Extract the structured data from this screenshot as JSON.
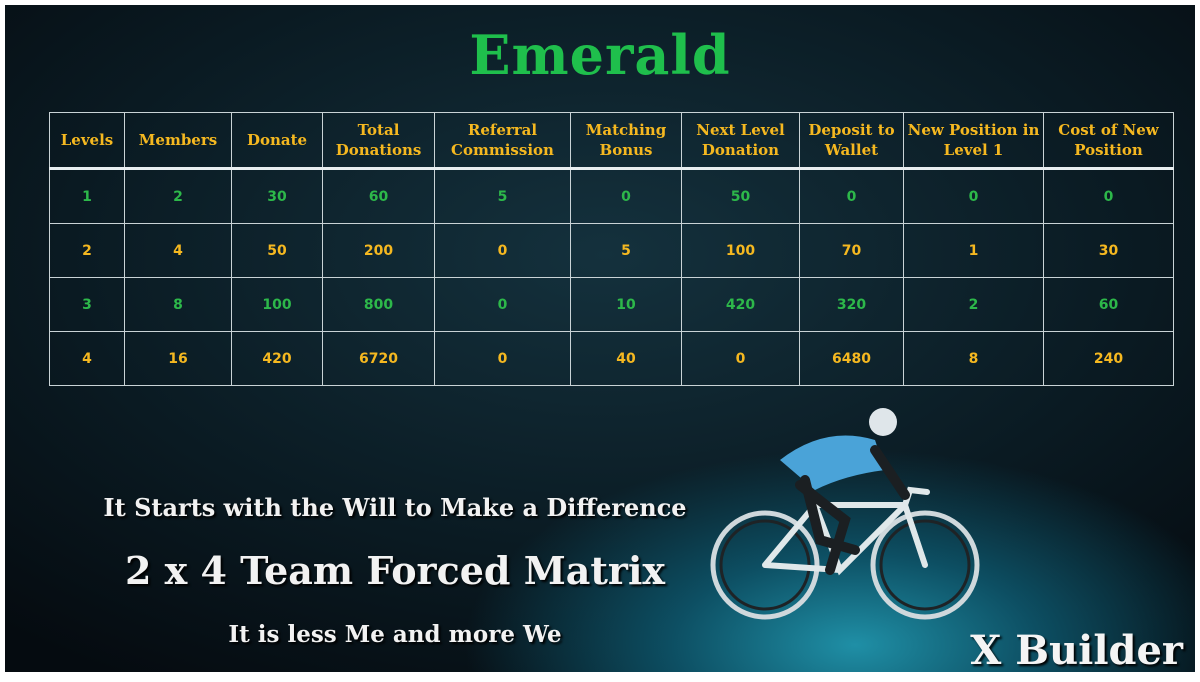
{
  "header": {
    "title": "Emerald"
  },
  "table": {
    "columns": [
      "Levels",
      "Members",
      "Donate",
      "Total Donations",
      "Referral Commission",
      "Matching Bonus",
      "Next Level Donation",
      "Deposit to Wallet",
      "New Position in Level 1",
      "Cost of New Position"
    ],
    "rows": [
      [
        1,
        2,
        30,
        60,
        5,
        0,
        50,
        0,
        0,
        0
      ],
      [
        2,
        4,
        50,
        200,
        0,
        5,
        100,
        70,
        1,
        30
      ],
      [
        3,
        8,
        100,
        800,
        0,
        10,
        420,
        320,
        2,
        60
      ],
      [
        4,
        16,
        420,
        6720,
        0,
        40,
        0,
        6480,
        8,
        240
      ]
    ]
  },
  "taglines": [
    "It Starts with the Will to Make a Difference",
    "2 x 4 Team Forced Matrix",
    "It is less Me and more We"
  ],
  "brand": "X Builder"
}
